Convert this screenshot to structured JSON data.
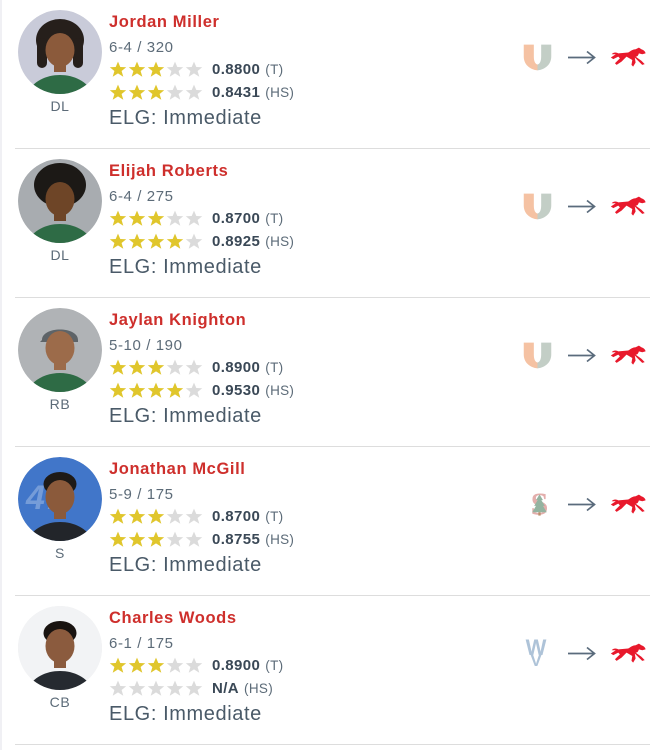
{
  "colors": {
    "name_red": "#CE2F2C",
    "text_slate": "#5C6B78",
    "rating_dark": "#3A4856",
    "elg_color": "#4A5A68",
    "star_filled": "#E0C62C",
    "star_empty": "#DBDBDB",
    "divider": "#DDDDDD",
    "arrow": "#5A6B7C"
  },
  "teams": {
    "miami": {
      "name": "Miami",
      "logo_left": "#F5C2A3",
      "logo_right": "#C3CEC6"
    },
    "stanford": {
      "name": "Stanford",
      "logo_s": "#E3AEAC",
      "logo_tree": "#94B3A0",
      "logo_trunk": "#BA8F6E"
    },
    "west-virginia": {
      "name": "West Virginia",
      "logo_mark": "#AEC3D8"
    },
    "smu": {
      "name": "SMU",
      "logo_mark": "#E8192C"
    }
  },
  "players": [
    {
      "name": "Jordan Miller",
      "position": "DL",
      "measurables": "6-4 / 320",
      "ratings": [
        {
          "stars": 3,
          "value": "0.8800",
          "context": "(T)"
        },
        {
          "stars": 3,
          "value": "0.8431",
          "context": "(HS)"
        }
      ],
      "eligibility": "ELG: Immediate",
      "from_team": "miami",
      "to_team": "smu",
      "avatar": {
        "bg": "#C9CBD9",
        "skin": "#8B5A3B",
        "hair": "#261F1B",
        "shirt": "#2E6B45",
        "style": "dreads"
      }
    },
    {
      "name": "Elijah Roberts",
      "position": "DL",
      "measurables": "6-4 / 275",
      "ratings": [
        {
          "stars": 3,
          "value": "0.8700",
          "context": "(T)"
        },
        {
          "stars": 4,
          "value": "0.8925",
          "context": "(HS)"
        }
      ],
      "eligibility": "ELG: Immediate",
      "from_team": "miami",
      "to_team": "smu",
      "avatar": {
        "bg": "#A8ACB0",
        "skin": "#6E4527",
        "hair": "#1C1916",
        "shirt": "#2E6B45",
        "style": "afro"
      }
    },
    {
      "name": "Jaylan Knighton",
      "position": "RB",
      "measurables": "5-10 / 190",
      "ratings": [
        {
          "stars": 3,
          "value": "0.8900",
          "context": "(T)"
        },
        {
          "stars": 4,
          "value": "0.9530",
          "context": "(HS)"
        }
      ],
      "eligibility": "ELG: Immediate",
      "from_team": "miami",
      "to_team": "smu",
      "avatar": {
        "bg": "#B0B3B6",
        "skin": "#9C6B4A",
        "hair": "#5E6468",
        "shirt": "#2E6B45",
        "style": "cap"
      }
    },
    {
      "name": "Jonathan McGill",
      "position": "S",
      "measurables": "5-9 / 175",
      "ratings": [
        {
          "stars": 3,
          "value": "0.8700",
          "context": "(T)"
        },
        {
          "stars": 3,
          "value": "0.8755",
          "context": "(HS)"
        }
      ],
      "eligibility": "ELG: Immediate",
      "from_team": "stanford",
      "to_team": "smu",
      "avatar": {
        "bg": "#4176C9",
        "skin": "#8B5A3B",
        "hair": "#1E1A17",
        "shirt": "#22252A",
        "style": "short"
      }
    },
    {
      "name": "Charles Woods",
      "position": "CB",
      "measurables": "6-1 / 175",
      "ratings": [
        {
          "stars": 3,
          "value": "0.8900",
          "context": "(T)"
        },
        {
          "stars": 0,
          "value": "N/A",
          "context": "(HS)"
        }
      ],
      "eligibility": "ELG: Immediate",
      "from_team": "west-virginia",
      "to_team": "smu",
      "avatar": {
        "bg": "#F2F3F5",
        "skin": "#8B5B3E",
        "hair": "#191310",
        "shirt": "#262A30",
        "style": "short"
      }
    }
  ]
}
